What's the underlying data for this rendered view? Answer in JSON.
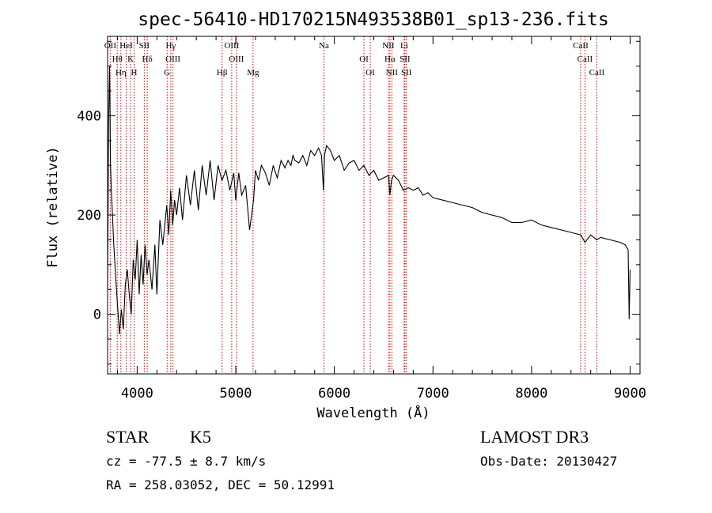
{
  "chart_data": {
    "type": "line",
    "title": "spec-56410-HD170215N493538B01_sp13-236.fits",
    "xlabel": "Wavelength (Å)",
    "ylabel": "Flux (relative)",
    "xlim": [
      3700,
      9100
    ],
    "ylim": [
      -120,
      560
    ],
    "xticks": [
      4000,
      5000,
      6000,
      7000,
      8000,
      9000
    ],
    "yticks": [
      0,
      200,
      400
    ],
    "grid": false,
    "line_color": "#000000",
    "marker_color": "#cc0000",
    "series": [
      {
        "x": [
          3700,
          3710,
          3720,
          3730,
          3740,
          3750,
          3760,
          3780,
          3800,
          3820,
          3840,
          3860,
          3880,
          3900,
          3920,
          3940,
          3960,
          3980,
          4000,
          4020,
          4040,
          4060,
          4080,
          4100,
          4120,
          4150,
          4180,
          4200,
          4230,
          4260,
          4280,
          4300,
          4320,
          4340,
          4360,
          4380,
          4400,
          4430,
          4460,
          4500,
          4540,
          4580,
          4620,
          4660,
          4700,
          4740,
          4780,
          4820,
          4860,
          4900,
          4940,
          4980,
          5000,
          5030,
          5060,
          5100,
          5140,
          5180,
          5200,
          5230,
          5260,
          5300,
          5340,
          5380,
          5420,
          5460,
          5500,
          5530,
          5560,
          5580,
          5600,
          5640,
          5680,
          5720,
          5760,
          5800,
          5840,
          5870,
          5890,
          5900,
          5920,
          5960,
          6000,
          6050,
          6100,
          6150,
          6200,
          6250,
          6300,
          6350,
          6400,
          6450,
          6500,
          6550,
          6563,
          6580,
          6600,
          6650,
          6700,
          6750,
          6800,
          6850,
          6900,
          6950,
          7000,
          7100,
          7200,
          7300,
          7400,
          7500,
          7600,
          7700,
          7800,
          7900,
          8000,
          8100,
          8200,
          8300,
          8400,
          8500,
          8542,
          8600,
          8662,
          8700,
          8800,
          8900,
          8950,
          8980,
          8990,
          9000
        ],
        "y": [
          50,
          380,
          500,
          300,
          240,
          200,
          150,
          80,
          20,
          -40,
          10,
          -30,
          60,
          90,
          40,
          0,
          110,
          70,
          150,
          40,
          120,
          60,
          140,
          80,
          110,
          50,
          140,
          40,
          190,
          140,
          180,
          220,
          160,
          250,
          180,
          230,
          200,
          255,
          190,
          280,
          220,
          290,
          210,
          300,
          240,
          310,
          230,
          300,
          270,
          290,
          250,
          285,
          230,
          285,
          240,
          260,
          170,
          230,
          290,
          270,
          300,
          285,
          260,
          300,
          275,
          310,
          295,
          310,
          300,
          320,
          310,
          305,
          320,
          300,
          330,
          320,
          335,
          320,
          250,
          320,
          340,
          330,
          310,
          320,
          290,
          305,
          310,
          290,
          300,
          280,
          290,
          270,
          275,
          280,
          240,
          270,
          280,
          270,
          250,
          255,
          250,
          255,
          240,
          245,
          235,
          230,
          225,
          220,
          215,
          205,
          200,
          195,
          185,
          185,
          190,
          180,
          175,
          170,
          165,
          160,
          145,
          160,
          150,
          155,
          150,
          145,
          140,
          130,
          -10,
          90
        ]
      }
    ],
    "lines": [
      {
        "name": "OII",
        "wavelength": 3727
      },
      {
        "name": "Hθ",
        "wavelength": 3798
      },
      {
        "name": "Hη",
        "wavelength": 3835
      },
      {
        "name": "HeI",
        "wavelength": 3889
      },
      {
        "name": "K",
        "wavelength": 3934
      },
      {
        "name": "H",
        "wavelength": 3969
      },
      {
        "name": "SII",
        "wavelength": 4072
      },
      {
        "name": "Hδ",
        "wavelength": 4102
      },
      {
        "name": "G",
        "wavelength": 4304
      },
      {
        "name": "Hγ",
        "wavelength": 4341
      },
      {
        "name": "OIII",
        "wavelength": 4363
      },
      {
        "name": "Hβ",
        "wavelength": 4861
      },
      {
        "name": "OIII",
        "wavelength": 4959
      },
      {
        "name": "OIII",
        "wavelength": 5007
      },
      {
        "name": "Mg",
        "wavelength": 5175
      },
      {
        "name": "Na",
        "wavelength": 5894
      },
      {
        "name": "OI",
        "wavelength": 6300
      },
      {
        "name": "OI",
        "wavelength": 6364
      },
      {
        "name": "NII",
        "wavelength": 6548
      },
      {
        "name": "Hα",
        "wavelength": 6563
      },
      {
        "name": "NII",
        "wavelength": 6583
      },
      {
        "name": "Li",
        "wavelength": 6708
      },
      {
        "name": "SII",
        "wavelength": 6716
      },
      {
        "name": "SII",
        "wavelength": 6731
      },
      {
        "name": "CaII",
        "wavelength": 8498
      },
      {
        "name": "CaII",
        "wavelength": 8542
      },
      {
        "name": "CaII",
        "wavelength": 8662
      }
    ]
  },
  "info": {
    "object_class": "STAR",
    "subclass": "K5",
    "survey": "LAMOST DR3",
    "redshift": "cz = -77.5 ± 8.7 km/s",
    "obs_date": "Obs-Date: 20130427",
    "coords": "RA = 258.03052, DEC =  50.12991"
  }
}
